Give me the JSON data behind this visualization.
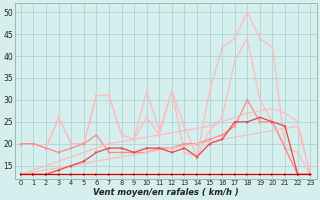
{
  "x": [
    0,
    1,
    2,
    3,
    4,
    5,
    6,
    7,
    8,
    9,
    10,
    11,
    12,
    13,
    14,
    15,
    16,
    17,
    18,
    19,
    20,
    21,
    22,
    23
  ],
  "line_flat": [
    13,
    13,
    13,
    13,
    13,
    13,
    13,
    13,
    13,
    13,
    13,
    13,
    13,
    13,
    13,
    13,
    13,
    13,
    13,
    13,
    13,
    13,
    13,
    13
  ],
  "line_trend1": [
    13,
    13.5,
    14,
    14.5,
    15,
    15.5,
    16,
    16.5,
    17,
    17.5,
    18,
    18.5,
    19,
    19.5,
    20,
    20.5,
    21,
    21.5,
    22,
    22.5,
    23,
    23.5,
    24,
    13
  ],
  "line_trend2": [
    13,
    14,
    15,
    16,
    17,
    18,
    19,
    20,
    20.5,
    21,
    21.5,
    22,
    22.5,
    23,
    23.5,
    24,
    25,
    26,
    27,
    27.5,
    28,
    27,
    25,
    13
  ],
  "line_mid": [
    13,
    13,
    13,
    14,
    15,
    16,
    18,
    19,
    19,
    18,
    19,
    19,
    18,
    19,
    17,
    20,
    21,
    25,
    25,
    26,
    25,
    24,
    13,
    13
  ],
  "line_wavy1": [
    20,
    20,
    19,
    18,
    19,
    20,
    22,
    18,
    18,
    18,
    18,
    19,
    19,
    20,
    20,
    21,
    22,
    24,
    30,
    25,
    25,
    19,
    13,
    13
  ],
  "line_wavy2": [
    20,
    20,
    19,
    26,
    20,
    20,
    31,
    31,
    22,
    21,
    26,
    22,
    32,
    18,
    17,
    23,
    26,
    39,
    44,
    30,
    25,
    19,
    13,
    13
  ],
  "line_top": [
    20,
    20,
    19,
    26,
    20,
    20,
    31,
    31,
    22,
    21,
    32,
    23,
    32,
    24,
    17,
    32,
    42,
    44,
    50,
    44,
    42,
    19,
    18,
    13
  ],
  "color_dark_red": "#cc0000",
  "color_mid_red": "#ee4444",
  "color_light_red": "#ff8888",
  "color_pale_red": "#ffbbbb",
  "bg_color": "#d5eeee",
  "grid_color": "#aacccc",
  "xlabel": "Vent moyen/en rafales ( km/h )",
  "ylim_min": 12,
  "ylim_max": 52,
  "xlim_min": -0.5,
  "xlim_max": 23.5,
  "yticks": [
    15,
    20,
    25,
    30,
    35,
    40,
    45,
    50
  ],
  "ytick_labels": [
    "15",
    "20",
    "25",
    "30",
    "35",
    "40",
    "45",
    "50"
  ]
}
